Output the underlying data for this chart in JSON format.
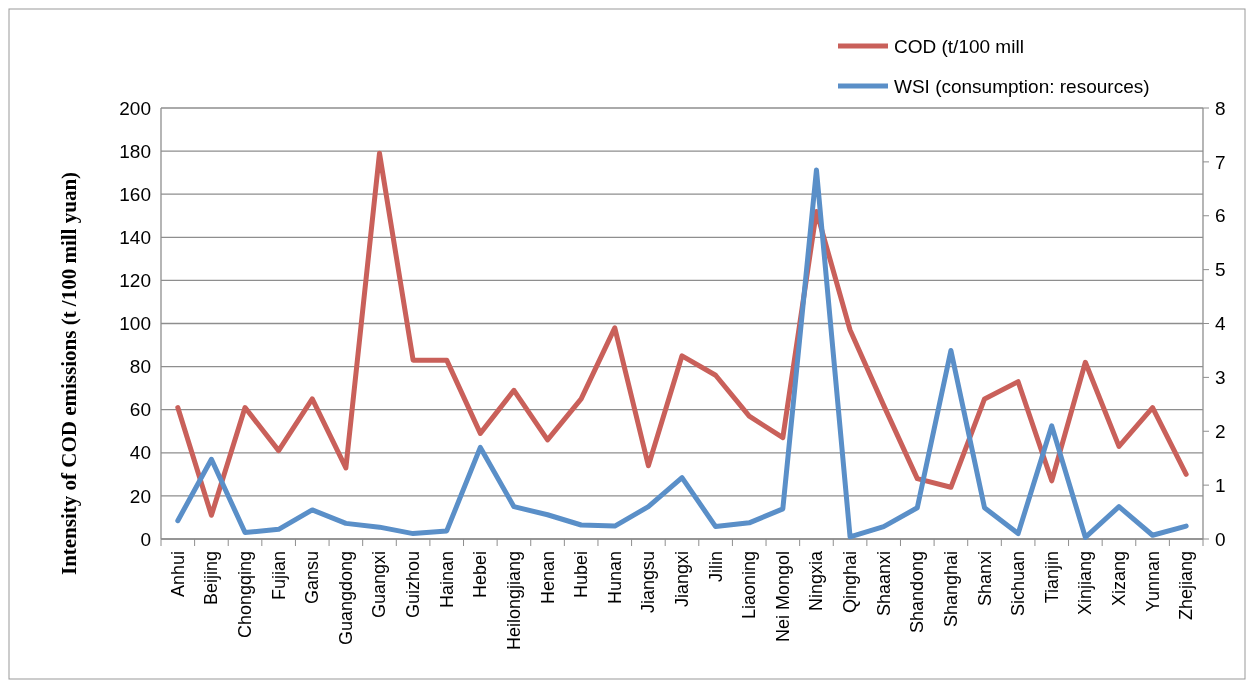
{
  "chart_data": {
    "type": "line",
    "ylabel": "Intensity of COD emissions (t /100 mill yuan)",
    "categories": [
      "Anhui",
      "Beijing",
      "Chongqing",
      "Fujian",
      "Gansu",
      "Guangdong",
      "Guangxi",
      "Guizhou",
      "Hainan",
      "Hebei",
      "Heilongjiang",
      "Henan",
      "Hubei",
      "Hunan",
      "Jiangsu",
      "Jiangxi",
      "Jilin",
      "Liaoning",
      "Nei Mongol",
      "Ningxia",
      "Qinghai",
      "Shaanxi",
      "Shandong",
      "Shanghai",
      "Shanxi",
      "Sichuan",
      "Tianjin",
      "Xinjiang",
      "Xizang",
      "Yunnan",
      "Zhejiang"
    ],
    "series": [
      {
        "name": "COD (t/100 mill",
        "color": "#c9605a",
        "values": [
          61,
          11,
          61,
          41,
          65,
          33,
          179,
          83,
          83,
          49,
          69,
          46,
          65,
          98,
          34,
          85,
          76,
          57,
          47,
          152,
          97,
          62,
          28,
          24,
          65,
          73,
          27,
          82,
          43,
          61,
          30
        ]
      },
      {
        "name": "WSI (consumption: resources)",
        "color": "#5a8fc8",
        "axis": "y2",
        "values": [
          0.34,
          1.48,
          0.12,
          0.18,
          0.54,
          0.29,
          0.22,
          0.1,
          0.15,
          1.7,
          0.6,
          0.45,
          0.26,
          0.24,
          0.6,
          1.14,
          0.23,
          0.3,
          0.56,
          6.85,
          0.04,
          0.23,
          0.58,
          3.5,
          0.58,
          0.1,
          2.1,
          0.03,
          0.6,
          0.07,
          0.24
        ]
      }
    ],
    "ylim": [
      0,
      200
    ],
    "yticks": [
      0,
      20,
      40,
      60,
      80,
      100,
      120,
      140,
      160,
      180,
      200
    ],
    "y2lim": [
      0,
      8
    ],
    "y2ticks": [
      0,
      1,
      2,
      3,
      4,
      5,
      6,
      7,
      8
    ],
    "grid": "y",
    "legend": "top right",
    "line_style": "solid",
    "marker": "none"
  }
}
